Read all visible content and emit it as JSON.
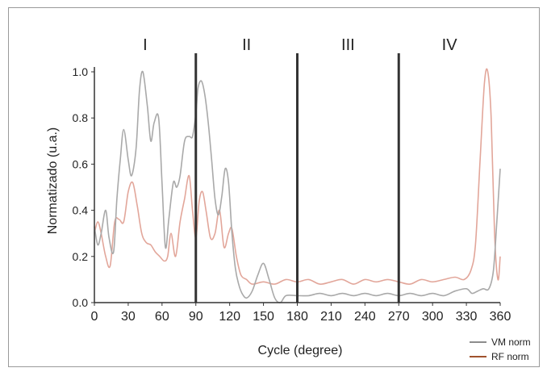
{
  "chart_data": {
    "type": "line",
    "title": "",
    "xlabel": "Cycle (degree)",
    "ylabel": "Normatizado (u.a.)",
    "xlim": [
      0,
      360
    ],
    "ylim": [
      0,
      1.0
    ],
    "xticks": [
      "0",
      "30",
      "60",
      "90",
      "120",
      "150",
      "180",
      "210",
      "240",
      "270",
      "300",
      "330",
      "360"
    ],
    "yticks": [
      "0.0",
      "0.2",
      "0.4",
      "0.6",
      "0.8",
      "1.0"
    ],
    "grid": false,
    "legend_position": "bottom-right",
    "phase_dividers": [
      90,
      180,
      270
    ],
    "phases": [
      {
        "label": "I",
        "x": 45
      },
      {
        "label": "II",
        "x": 135
      },
      {
        "label": "III",
        "x": 225
      },
      {
        "label": "IV",
        "x": 315
      }
    ],
    "series": [
      {
        "name": "VM norm",
        "color": "#a9a9a9",
        "x": [
          0,
          3,
          6,
          10,
          13,
          17,
          20,
          23,
          26,
          30,
          33,
          37,
          40,
          43,
          47,
          50,
          53,
          57,
          60,
          63,
          66,
          70,
          73,
          76,
          80,
          84,
          87,
          90,
          92,
          95,
          98,
          101,
          104,
          107,
          110,
          113,
          116,
          119,
          122,
          125,
          128,
          131,
          135,
          140,
          145,
          150,
          155,
          160,
          165,
          170,
          180,
          190,
          200,
          210,
          220,
          230,
          240,
          250,
          260,
          270,
          280,
          290,
          300,
          310,
          320,
          330,
          335,
          340,
          345,
          350,
          354,
          357,
          360
        ],
        "y": [
          0.33,
          0.25,
          0.3,
          0.4,
          0.28,
          0.22,
          0.45,
          0.62,
          0.75,
          0.62,
          0.55,
          0.67,
          0.92,
          1.0,
          0.85,
          0.7,
          0.78,
          0.8,
          0.52,
          0.24,
          0.36,
          0.52,
          0.5,
          0.55,
          0.7,
          0.72,
          0.72,
          0.82,
          0.93,
          0.96,
          0.9,
          0.78,
          0.62,
          0.45,
          0.38,
          0.46,
          0.58,
          0.52,
          0.3,
          0.15,
          0.08,
          0.04,
          0.02,
          0.05,
          0.12,
          0.17,
          0.1,
          0.02,
          0.0,
          0.03,
          0.03,
          0.03,
          0.04,
          0.03,
          0.04,
          0.03,
          0.04,
          0.03,
          0.04,
          0.03,
          0.04,
          0.03,
          0.04,
          0.03,
          0.05,
          0.06,
          0.04,
          0.05,
          0.06,
          0.06,
          0.14,
          0.35,
          0.58
        ]
      },
      {
        "name": "RF norm",
        "color": "#e2a69a",
        "x": [
          0,
          3,
          6,
          10,
          14,
          18,
          22,
          26,
          30,
          34,
          38,
          42,
          46,
          50,
          54,
          58,
          62,
          65,
          68,
          72,
          76,
          80,
          84,
          87,
          90,
          93,
          96,
          99,
          103,
          107,
          111,
          115,
          119,
          122,
          126,
          130,
          135,
          140,
          150,
          160,
          170,
          180,
          190,
          200,
          210,
          220,
          230,
          240,
          250,
          260,
          270,
          280,
          290,
          300,
          310,
          320,
          328,
          334,
          338,
          342,
          346,
          349,
          352,
          355,
          358,
          360
        ],
        "y": [
          0.3,
          0.35,
          0.3,
          0.2,
          0.16,
          0.35,
          0.36,
          0.35,
          0.48,
          0.52,
          0.42,
          0.3,
          0.26,
          0.25,
          0.22,
          0.2,
          0.18,
          0.2,
          0.3,
          0.2,
          0.35,
          0.45,
          0.55,
          0.4,
          0.28,
          0.44,
          0.48,
          0.4,
          0.28,
          0.3,
          0.4,
          0.24,
          0.3,
          0.32,
          0.2,
          0.12,
          0.1,
          0.08,
          0.09,
          0.08,
          0.1,
          0.09,
          0.1,
          0.08,
          0.09,
          0.1,
          0.08,
          0.1,
          0.09,
          0.1,
          0.09,
          0.08,
          0.1,
          0.09,
          0.1,
          0.11,
          0.1,
          0.14,
          0.25,
          0.6,
          0.95,
          1.0,
          0.8,
          0.3,
          0.1,
          0.2
        ]
      }
    ]
  }
}
